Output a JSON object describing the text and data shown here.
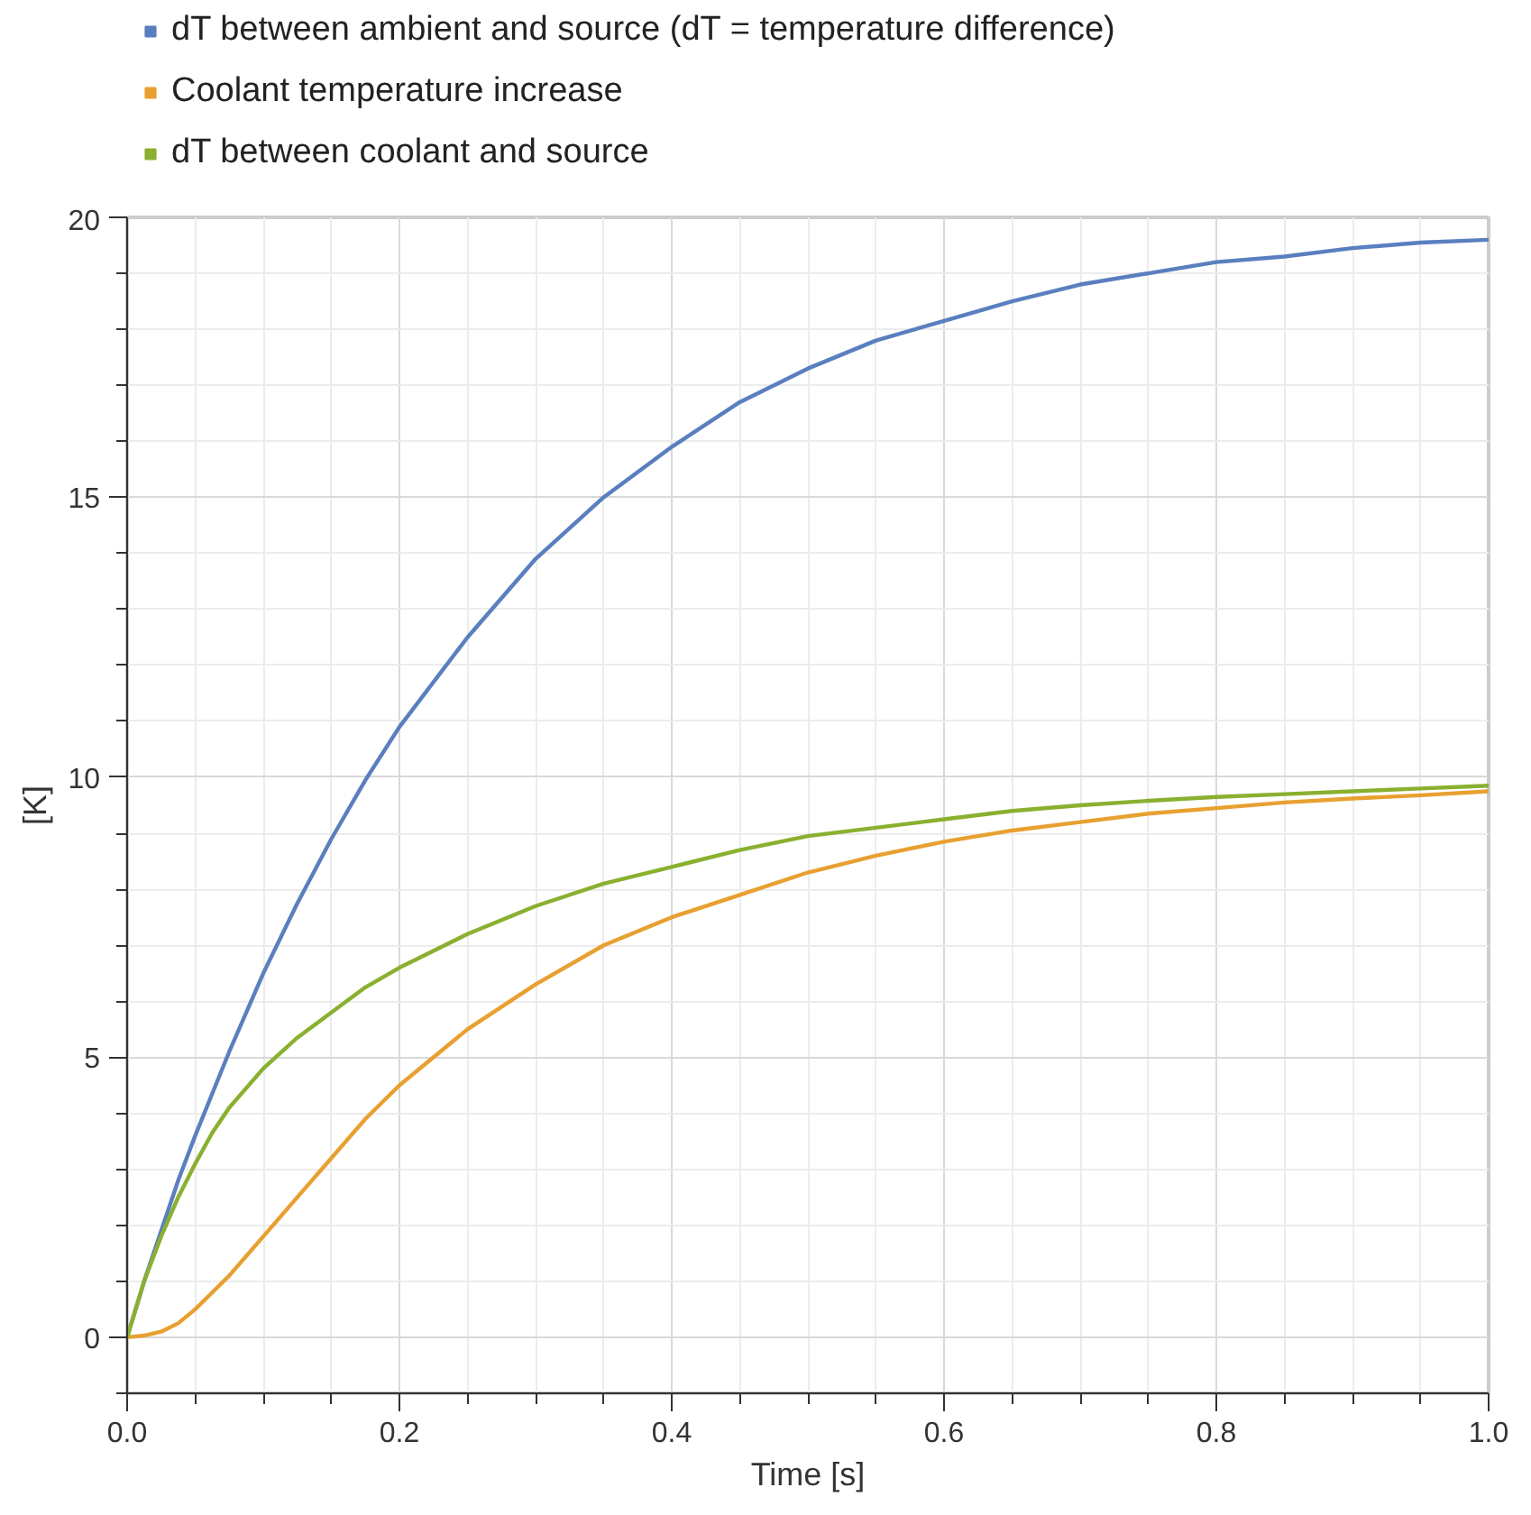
{
  "chart_data": {
    "type": "line",
    "xlabel": "Time [s]",
    "ylabel": "[K]",
    "x": [
      0,
      0.0125,
      0.025,
      0.0375,
      0.05,
      0.0625,
      0.075,
      0.1,
      0.125,
      0.15,
      0.175,
      0.2,
      0.25,
      0.3,
      0.35,
      0.4,
      0.45,
      0.5,
      0.55,
      0.6,
      0.65,
      0.7,
      0.75,
      0.8,
      0.85,
      0.9,
      0.95,
      1.0
    ],
    "series": [
      {
        "name": "dT between ambient and source (dT = temperature difference)",
        "color": "#5a7fbf",
        "values": [
          0,
          1.0,
          1.9,
          2.8,
          3.6,
          4.35,
          5.1,
          6.5,
          7.75,
          8.9,
          9.95,
          10.9,
          12.5,
          13.9,
          15.0,
          15.9,
          16.7,
          17.3,
          17.8,
          18.15,
          18.5,
          18.8,
          19.0,
          19.2,
          19.3,
          19.45,
          19.55,
          19.6
        ]
      },
      {
        "name": "Coolant temperature increase",
        "color": "#e8a030",
        "values": [
          0,
          0.03,
          0.1,
          0.25,
          0.5,
          0.8,
          1.1,
          1.8,
          2.5,
          3.2,
          3.9,
          4.5,
          5.5,
          6.3,
          7.0,
          7.5,
          7.9,
          8.3,
          8.6,
          8.85,
          9.05,
          9.2,
          9.35,
          9.45,
          9.55,
          9.62,
          9.68,
          9.75
        ]
      },
      {
        "name": "dT between coolant and source",
        "color": "#8ab030",
        "values": [
          0,
          1.0,
          1.8,
          2.5,
          3.1,
          3.65,
          4.1,
          4.8,
          5.35,
          5.8,
          6.25,
          6.6,
          7.2,
          7.7,
          8.1,
          8.4,
          8.7,
          8.95,
          9.1,
          9.25,
          9.4,
          9.5,
          9.58,
          9.65,
          9.7,
          9.75,
          9.8,
          9.85
        ]
      }
    ],
    "xlim": [
      0,
      1
    ],
    "ylim": [
      -1,
      20
    ],
    "xticks": [
      {
        "value": 0,
        "label": "0.0"
      },
      {
        "value": 0.05,
        "label": null
      },
      {
        "value": 0.1,
        "label": null
      },
      {
        "value": 0.15,
        "label": null
      },
      0.2,
      {
        "value": 0.25,
        "label": null
      },
      {
        "value": 0.3,
        "label": null
      },
      {
        "value": 0.35,
        "label": null
      },
      0.4,
      {
        "value": 0.45,
        "label": null
      },
      {
        "value": 0.5,
        "label": null
      },
      {
        "value": 0.55,
        "label": null
      },
      0.6,
      {
        "value": 0.65,
        "label": null
      },
      {
        "value": 0.7,
        "label": null
      },
      {
        "value": 0.75,
        "label": null
      },
      0.8,
      {
        "value": 0.85,
        "label": null
      },
      {
        "value": 0.9,
        "label": null
      },
      {
        "value": 0.95,
        "label": null
      },
      {
        "value": 1,
        "label": "1.0"
      }
    ],
    "yticks": [
      {
        "value": -1,
        "label": null
      },
      0,
      {
        "value": 1,
        "label": null
      },
      {
        "value": 2,
        "label": null
      },
      {
        "value": 3,
        "label": null
      },
      {
        "value": 4,
        "label": null
      },
      5,
      {
        "value": 6,
        "label": null
      },
      {
        "value": 7,
        "label": null
      },
      {
        "value": 8,
        "label": null
      },
      {
        "value": 9,
        "label": null
      },
      10,
      {
        "value": 11,
        "label": null
      },
      {
        "value": 12,
        "label": null
      },
      {
        "value": 13,
        "label": null
      },
      {
        "value": 14,
        "label": null
      },
      15,
      {
        "value": 16,
        "label": null
      },
      {
        "value": 17,
        "label": null
      },
      {
        "value": 18,
        "label": null
      },
      {
        "value": 19,
        "label": null
      },
      20
    ],
    "grid": true,
    "legend": "top",
    "marker": "none",
    "line_style": "solid"
  }
}
